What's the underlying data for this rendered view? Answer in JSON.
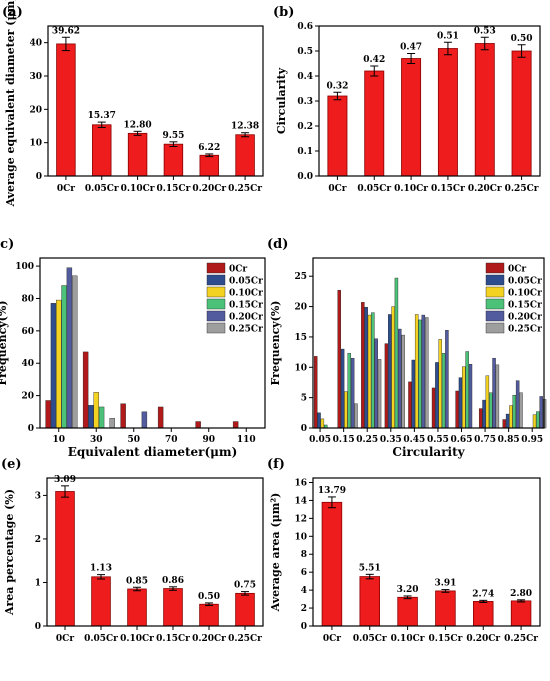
{
  "chart_data": [
    {
      "id": "a",
      "panel_label": "(a)",
      "type": "bar",
      "categories": [
        "0Cr",
        "0.05Cr",
        "0.10Cr",
        "0.15Cr",
        "0.20Cr",
        "0.25Cr"
      ],
      "values": [
        39.62,
        15.37,
        12.8,
        9.55,
        6.22,
        12.38
      ],
      "value_labels": [
        "39.62",
        "15.37",
        "12.80",
        "9.55",
        "6.22",
        "12.38"
      ],
      "errors": [
        2.0,
        0.8,
        0.6,
        0.7,
        0.4,
        0.6
      ],
      "ylabel": "Average equivalent diameter (μm)",
      "xlabel": "",
      "ylim": [
        0,
        45
      ],
      "yticks": [
        0,
        10,
        20,
        30,
        40
      ],
      "ytick_labels": [
        "0",
        "10",
        "20",
        "30",
        "40"
      ],
      "bar_color": "#ee1c1c"
    },
    {
      "id": "b",
      "panel_label": "(b)",
      "type": "bar",
      "categories": [
        "0Cr",
        "0.05Cr",
        "0.10Cr",
        "0.15Cr",
        "0.20Cr",
        "0.25Cr"
      ],
      "values": [
        0.32,
        0.42,
        0.47,
        0.51,
        0.53,
        0.5
      ],
      "value_labels": [
        "0.32",
        "0.42",
        "0.47",
        "0.51",
        "0.53",
        "0.50"
      ],
      "errors": [
        0.015,
        0.02,
        0.02,
        0.025,
        0.025,
        0.025
      ],
      "ylabel": "Circularity",
      "xlabel": "",
      "ylim": [
        0,
        0.6
      ],
      "yticks": [
        0,
        0.1,
        0.2,
        0.3,
        0.4,
        0.5,
        0.6
      ],
      "ytick_labels": [
        "0.0",
        "0.1",
        "0.2",
        "0.3",
        "0.4",
        "0.5",
        "0.6"
      ],
      "bar_color": "#ee1c1c"
    },
    {
      "id": "c",
      "panel_label": "(c)",
      "type": "bar",
      "x": [
        10,
        30,
        50,
        70,
        90,
        110
      ],
      "xtick_labels": [
        "10",
        "30",
        "50",
        "70",
        "90",
        "110"
      ],
      "xlim": [
        0,
        120
      ],
      "xlabel": "Equivalent diameter(μm)",
      "ylabel": "Frequency(%)",
      "ylim": [
        0,
        105
      ],
      "yticks": [
        0,
        20,
        40,
        60,
        80,
        100
      ],
      "ytick_labels": [
        "0",
        "20",
        "40",
        "60",
        "80",
        "100"
      ],
      "bins": [
        {
          "start": 3,
          "values": [
            17,
            77,
            79,
            88,
            99,
            94
          ]
        },
        {
          "start": 23,
          "values": [
            47,
            14,
            22,
            13,
            0,
            6
          ]
        },
        {
          "start": 43,
          "values": [
            15,
            0,
            0,
            0,
            10,
            0
          ]
        },
        {
          "start": 63,
          "values": [
            13,
            0,
            0,
            0,
            0,
            0
          ]
        },
        {
          "start": 83,
          "values": [
            4,
            0,
            0,
            0,
            0,
            0
          ]
        },
        {
          "start": 103,
          "values": [
            4,
            0,
            0,
            0,
            0,
            0
          ]
        }
      ],
      "series": [
        {
          "name": "0Cr",
          "color": "#b11a1a"
        },
        {
          "name": "0.05Cr",
          "color": "#2e4d8f"
        },
        {
          "name": "0.10Cr",
          "color": "#f3d221"
        },
        {
          "name": "0.15Cr",
          "color": "#4cc279"
        },
        {
          "name": "0.20Cr",
          "color": "#525b9e"
        },
        {
          "name": "0.25Cr",
          "color": "#9e9e9e"
        }
      ],
      "legend_position": "top-right"
    },
    {
      "id": "d",
      "panel_label": "(d)",
      "type": "bar",
      "x": [
        0.05,
        0.15,
        0.25,
        0.35,
        0.45,
        0.55,
        0.65,
        0.75,
        0.85,
        0.95
      ],
      "xtick_labels": [
        "0.05",
        "0.15",
        "0.25",
        "0.35",
        "0.45",
        "0.55",
        "0.65",
        "0.75",
        "0.85",
        "0.95"
      ],
      "xlim": [
        0.02,
        1.0
      ],
      "xlabel": "Circularity",
      "ylabel": "Frequency(%)",
      "ylim": [
        0,
        28
      ],
      "yticks": [
        0,
        5,
        10,
        15,
        20,
        25
      ],
      "ytick_labels": [
        "0",
        "5",
        "10",
        "15",
        "20",
        "25"
      ],
      "bins": [
        {
          "start": 0.025,
          "values": [
            11.8,
            2.5,
            1.5,
            0.5,
            0,
            0
          ]
        },
        {
          "start": 0.125,
          "values": [
            22.7,
            13,
            6,
            12.3,
            11.5,
            4
          ]
        },
        {
          "start": 0.225,
          "values": [
            20.7,
            19.9,
            18.6,
            19,
            14.7,
            11.3
          ]
        },
        {
          "start": 0.325,
          "values": [
            13.9,
            18.7,
            20,
            24.7,
            16.3,
            15.3
          ]
        },
        {
          "start": 0.425,
          "values": [
            7.6,
            11.2,
            18.7,
            17.8,
            18.6,
            18.2
          ]
        },
        {
          "start": 0.525,
          "values": [
            6.6,
            10.8,
            14.6,
            12.3,
            16.1,
            0
          ]
        },
        {
          "start": 0.625,
          "values": [
            6.1,
            8.3,
            10.1,
            12.6,
            10.5,
            0
          ]
        },
        {
          "start": 0.725,
          "values": [
            3.2,
            4.6,
            8.6,
            5.8,
            11.5,
            10.4
          ]
        },
        {
          "start": 0.825,
          "values": [
            1.4,
            2.3,
            3.7,
            5.4,
            7.8,
            5.8
          ]
        },
        {
          "start": 0.925,
          "values": [
            0,
            0,
            2.2,
            2.7,
            5.2,
            4.7
          ]
        }
      ],
      "series": [
        {
          "name": "0Cr",
          "color": "#b11a1a"
        },
        {
          "name": "0.05Cr",
          "color": "#2e4d8f"
        },
        {
          "name": "0.10Cr",
          "color": "#f3d221"
        },
        {
          "name": "0.15Cr",
          "color": "#4cc279"
        },
        {
          "name": "0.20Cr",
          "color": "#525b9e"
        },
        {
          "name": "0.25Cr",
          "color": "#9e9e9e"
        }
      ],
      "legend_position": "top-right"
    },
    {
      "id": "e",
      "panel_label": "(e)",
      "type": "bar",
      "categories": [
        "0Cr",
        "0.05Cr",
        "0.10Cr",
        "0.15Cr",
        "0.20Cr",
        "0.25Cr"
      ],
      "values": [
        3.09,
        1.13,
        0.85,
        0.86,
        0.5,
        0.75
      ],
      "value_labels": [
        "3.09",
        "1.13",
        "0.85",
        "0.86",
        "0.50",
        "0.75"
      ],
      "errors": [
        0.13,
        0.05,
        0.04,
        0.04,
        0.03,
        0.04
      ],
      "ylabel": "Area percentage (%)",
      "xlabel": "",
      "ylim": [
        0,
        3.4
      ],
      "yticks": [
        0,
        1,
        2,
        3
      ],
      "ytick_labels": [
        "0",
        "1",
        "2",
        "3"
      ],
      "bar_color": "#ee1c1c"
    },
    {
      "id": "f",
      "panel_label": "(f)",
      "type": "bar",
      "categories": [
        "0Cr",
        "0.05Cr",
        "0.10Cr",
        "0.15Cr",
        "0.20Cr",
        "0.25Cr"
      ],
      "values": [
        13.79,
        5.51,
        3.2,
        3.91,
        2.74,
        2.8
      ],
      "value_labels": [
        "13.79",
        "5.51",
        "3.20",
        "3.91",
        "2.74",
        "2.80"
      ],
      "errors": [
        0.6,
        0.25,
        0.15,
        0.15,
        0.12,
        0.12
      ],
      "ylabel": "Average area (μm²)",
      "xlabel": "",
      "ylim": [
        0,
        16.5
      ],
      "yticks": [
        0,
        2,
        4,
        6,
        8,
        10,
        12,
        14,
        16
      ],
      "ytick_labels": [
        "0",
        "2",
        "4",
        "6",
        "8",
        "10",
        "12",
        "14",
        "16"
      ],
      "bar_color": "#ee1c1c"
    }
  ]
}
